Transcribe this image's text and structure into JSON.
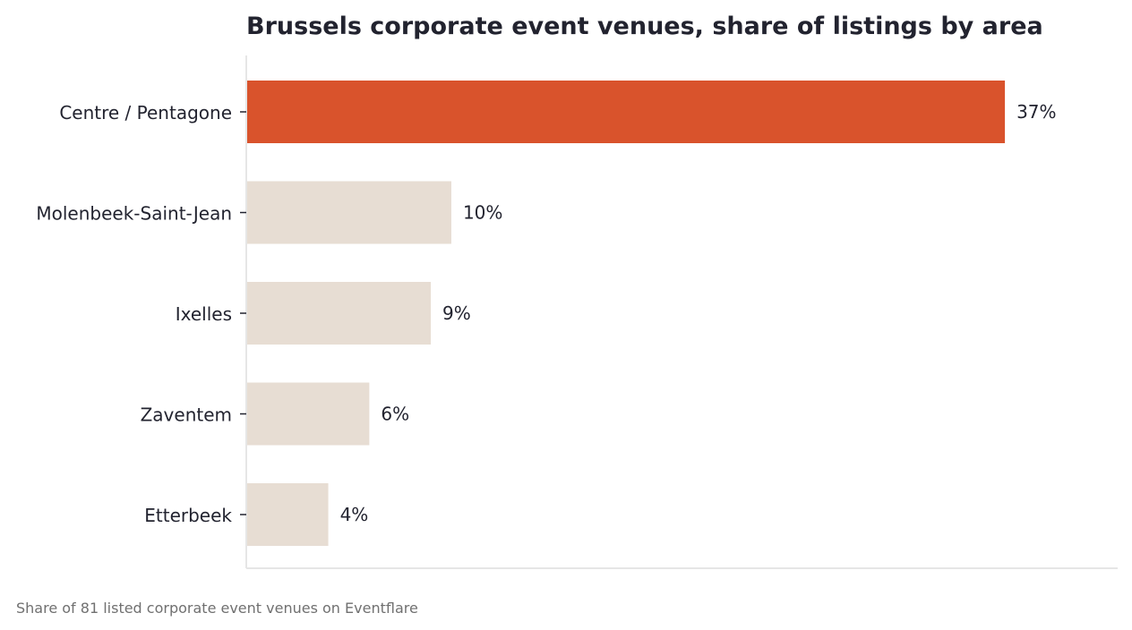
{
  "chart_data": {
    "type": "bar",
    "orientation": "horizontal",
    "title": "Brussels corporate event venues, share of listings by area",
    "categories": [
      "Centre / Pentagone",
      "Molenbeek-Saint-Jean",
      "Ixelles",
      "Zaventem",
      "Etterbeek"
    ],
    "values": [
      37,
      10,
      9,
      6,
      4
    ],
    "value_labels": [
      "37%",
      "10%",
      "9%",
      "6%",
      "4%"
    ],
    "unit": "%",
    "xlim": [
      0,
      42.5
    ],
    "grid": false,
    "highlight_index": 0
  },
  "footnote": "Share of 81 listed corporate event venues on Eventflare",
  "colors": {
    "highlight": "#d9532c",
    "bar": "#e7ddd3",
    "text": "#22232f",
    "axis": "#e6e6e6",
    "footnote": "#707070"
  }
}
